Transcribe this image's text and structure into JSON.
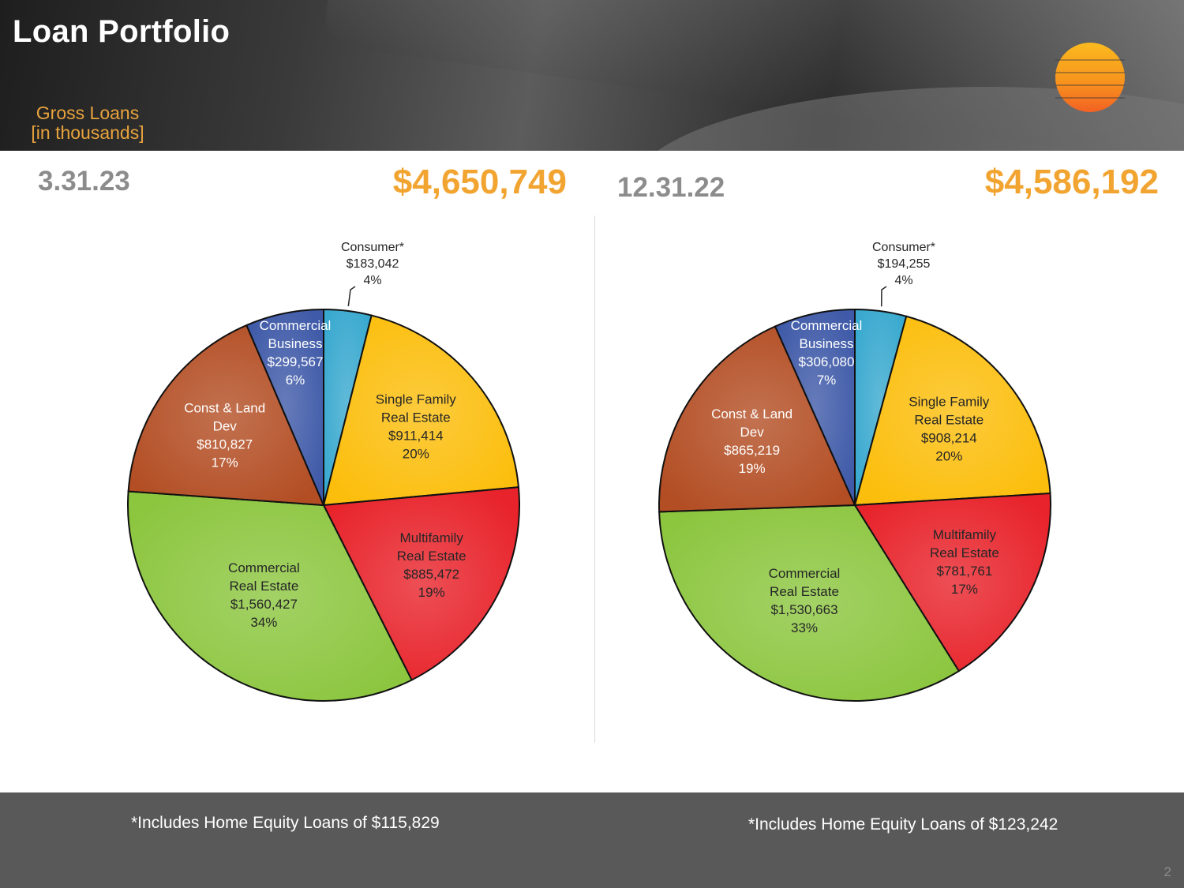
{
  "title": "Loan Portfolio",
  "subtitle_line1": "Gross Loans",
  "subtitle_line2": "[in thousands]",
  "footnote_left": "*Includes Home Equity Loans of $115,829",
  "footnote_right": "*Includes Home Equity Loans of $123,242",
  "page_number": "2",
  "colors": {
    "accent": "#f2a431",
    "Consumer": "#3aa9cf",
    "Single Family Real Estate": "#fcbe0c",
    "Multifamily Real Estate": "#e8232b",
    "Commercial Real Estate": "#8cc63f",
    "Const & Land Dev": "#b34e24",
    "Commercial Business": "#3f5aa8"
  },
  "chart_data": [
    {
      "type": "pie",
      "title": "3.31.23",
      "total_label": "$4,650,749",
      "categories": [
        "Consumer*",
        "Single Family Real Estate",
        "Multifamily Real Estate",
        "Commercial Real Estate",
        "Const & Land Dev",
        "Commercial Business"
      ],
      "label_lines": [
        [
          "Consumer*"
        ],
        [
          "Single Family",
          "Real Estate"
        ],
        [
          "Multifamily",
          "Real Estate"
        ],
        [
          "Commercial",
          "Real Estate"
        ],
        [
          "Const & Land",
          "Dev"
        ],
        [
          "Commercial",
          "Business"
        ]
      ],
      "values": [
        183042,
        911414,
        885472,
        1560427,
        810827,
        299567
      ],
      "value_labels": [
        "$183,042",
        "$911,414",
        "$885,472",
        "$1,560,427",
        "$810,827",
        "$299,567"
      ],
      "percent_labels": [
        "4%",
        "20%",
        "19%",
        "34%",
        "17%",
        "6%"
      ]
    },
    {
      "type": "pie",
      "title": "12.31.22",
      "total_label": "$4,586,192",
      "categories": [
        "Consumer*",
        "Single Family Real Estate",
        "Multifamily Real Estate",
        "Commercial Real Estate",
        "Const & Land Dev",
        "Commercial Business"
      ],
      "label_lines": [
        [
          "Consumer*"
        ],
        [
          "Single Family",
          "Real Estate"
        ],
        [
          "Multifamily",
          "Real Estate"
        ],
        [
          "Commercial",
          "Real Estate"
        ],
        [
          "Const & Land",
          "Dev"
        ],
        [
          "Commercial",
          "Business"
        ]
      ],
      "values": [
        194255,
        908214,
        781761,
        1530663,
        865219,
        306080
      ],
      "value_labels": [
        "$194,255",
        "$908,214",
        "$781,761",
        "$1,530,663",
        "$865,219",
        "$306,080"
      ],
      "percent_labels": [
        "4%",
        "20%",
        "17%",
        "33%",
        "19%",
        "7%"
      ]
    }
  ]
}
